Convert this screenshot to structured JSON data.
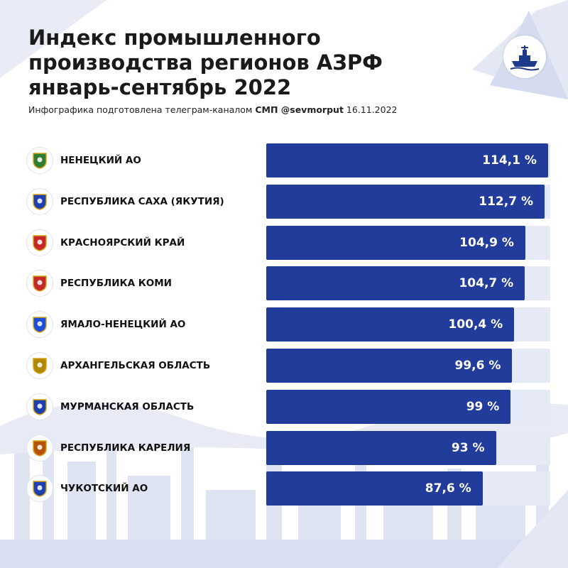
{
  "header": {
    "title_lines": [
      "Индекс промышленного",
      "производства регионов АЗРФ",
      "январь-сентябрь 2022"
    ],
    "subtitle_text": "Инфографика подготовлена телеграм-каналом",
    "subtitle_brand": "СМП @sevmorput",
    "subtitle_date": "16.11.2022"
  },
  "colors": {
    "bar": "#223c9b",
    "track": "#e6e9f6",
    "accent": "#1e3a8a"
  },
  "icons": {
    "logo": "icebreaker-ship-icon",
    "emblems": [
      "coat-of-arms-icon"
    ]
  },
  "chart_data": {
    "type": "bar",
    "orientation": "horizontal",
    "categories": [
      "НЕНЕЦКИЙ АО",
      "РЕСПУБЛИКА САХА (ЯКУТИЯ)",
      "КРАСНОЯРСКИЙ КРАЙ",
      "РЕСПУБЛИКА КОМИ",
      "ЯМАЛО-НЕНЕЦКИЙ АО",
      "АРХАНГЕЛЬСКАЯ ОБЛАСТЬ",
      "МУРМАНСКАЯ ОБЛАСТЬ",
      "РЕСПУБЛИКА КАРЕЛИЯ",
      "ЧУКОТСКИЙ АО"
    ],
    "values": [
      114.1,
      112.7,
      104.9,
      104.7,
      100.4,
      99.6,
      99,
      93,
      87.6
    ],
    "value_labels": [
      "114,1 %",
      "112,7 %",
      "104,9 %",
      "104,7 %",
      "100,4 %",
      "99,6 %",
      "99 %",
      "93 %",
      "87,6 %"
    ],
    "unit": "%",
    "xlim": [
      0,
      115
    ],
    "grid": false,
    "legend": false
  }
}
